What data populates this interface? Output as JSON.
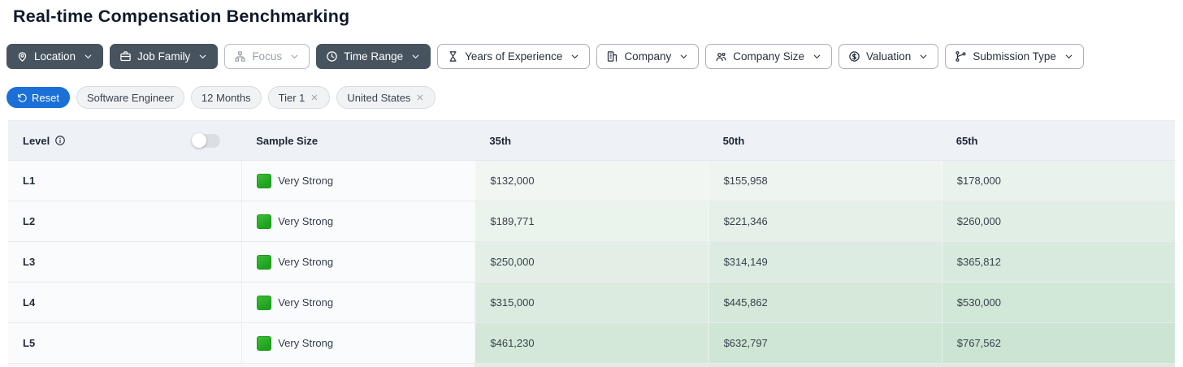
{
  "page": {
    "title": "Real-time Compensation Benchmarking"
  },
  "filters": [
    {
      "label": "Location",
      "icon": "map-pin-icon",
      "style": "filled"
    },
    {
      "label": "Job Family",
      "icon": "briefcase-icon",
      "style": "filled"
    },
    {
      "label": "Focus",
      "icon": "sitemap-icon",
      "style": "outline-muted"
    },
    {
      "label": "Time Range",
      "icon": "clock-icon",
      "style": "filled"
    },
    {
      "label": "Years of Experience",
      "icon": "hourglass-icon",
      "style": "outline"
    },
    {
      "label": "Company",
      "icon": "building-icon",
      "style": "outline"
    },
    {
      "label": "Company Size",
      "icon": "users-icon",
      "style": "outline"
    },
    {
      "label": "Valuation",
      "icon": "dollar-circle-icon",
      "style": "outline"
    },
    {
      "label": "Submission Type",
      "icon": "branch-icon",
      "style": "outline"
    }
  ],
  "chips": {
    "reset_label": "Reset",
    "applied": [
      {
        "label": "Software Engineer",
        "removable": false
      },
      {
        "label": "12 Months",
        "removable": false
      },
      {
        "label": "Tier 1",
        "removable": true
      },
      {
        "label": "United States",
        "removable": true
      }
    ]
  },
  "table": {
    "columns": [
      "Level",
      "Sample Size",
      "35th",
      "50th",
      "65th"
    ],
    "level_toggle_state": "off",
    "rows": [
      {
        "level": "L1",
        "sample_size": "Very Strong",
        "p35": "$132,000",
        "p50": "$155,958",
        "p65": "$178,000"
      },
      {
        "level": "L2",
        "sample_size": "Very Strong",
        "p35": "$189,771",
        "p50": "$221,346",
        "p65": "$260,000"
      },
      {
        "level": "L3",
        "sample_size": "Very Strong",
        "p35": "$250,000",
        "p50": "$314,149",
        "p65": "$365,812"
      },
      {
        "level": "L4",
        "sample_size": "Very Strong",
        "p35": "$315,000",
        "p50": "$445,862",
        "p65": "$530,000"
      },
      {
        "level": "L5",
        "sample_size": "Very Strong",
        "p35": "$461,230",
        "p50": "$632,797",
        "p65": "$767,562"
      }
    ]
  },
  "colors": {
    "accent_blue": "#1b70d8",
    "filled_button_slate": "#47535e",
    "sample_green": "#22a622",
    "header_bg": "#eef1f6",
    "heat": [
      [
        "#f2f6f3",
        "#eef4f0",
        "#eaf2ed"
      ],
      [
        "#ebf3ed",
        "#e5f0e9",
        "#e0eee5"
      ],
      [
        "#e3efe6",
        "#dcece2",
        "#d8eade"
      ],
      [
        "#dbebdf",
        "#d5e8da",
        "#d1e7d7"
      ],
      [
        "#d4e8d9",
        "#cfe6d5",
        "#cce4d3"
      ]
    ],
    "partial_row_heat": [
      "#e1eee5",
      "#ddece2",
      "#daebe0"
    ],
    "partial_row_left_bg": "#f6f8f9"
  }
}
